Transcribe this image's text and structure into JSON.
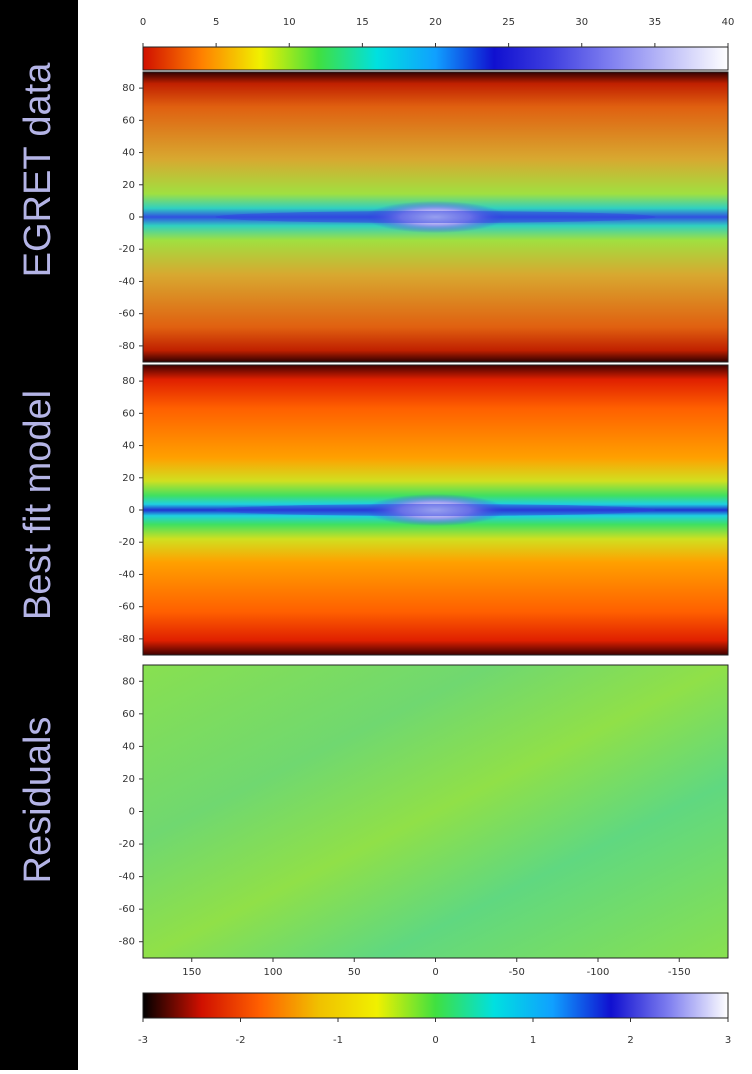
{
  "chart_data": [
    {
      "type": "colorbar",
      "xlim": [
        0,
        40
      ],
      "xticks": [
        0,
        5,
        10,
        15,
        20,
        25,
        30,
        35,
        40
      ],
      "colors": [
        "#d01000",
        "#ff8000",
        "#f0f000",
        "#40e040",
        "#00e0e0",
        "#10a0ff",
        "#1010d0",
        "#4040e0",
        "#8080f0",
        "#c0c0f8",
        "#ffffff"
      ]
    },
    {
      "type": "heatmap",
      "title": "EGRET data",
      "xlim": [
        180,
        -180
      ],
      "ylim": [
        -90,
        90
      ],
      "yticks": [
        80,
        60,
        40,
        20,
        0,
        -20,
        -40,
        -60,
        -80
      ]
    },
    {
      "type": "heatmap",
      "title": "Best fit model",
      "xlim": [
        180,
        -180
      ],
      "ylim": [
        -90,
        90
      ],
      "yticks": [
        80,
        60,
        40,
        20,
        0,
        -20,
        -40,
        -60,
        -80
      ]
    },
    {
      "type": "heatmap",
      "title": "Residuals",
      "xlim": [
        180,
        -180
      ],
      "ylim": [
        -90,
        90
      ],
      "yticks": [
        80,
        60,
        40,
        20,
        0,
        -20,
        -40,
        -60,
        -80
      ],
      "xticks": [
        150,
        100,
        50,
        0,
        -50,
        -100,
        -150
      ]
    },
    {
      "type": "colorbar",
      "xlim": [
        -3,
        3
      ],
      "xticks": [
        -3,
        -2,
        -1,
        0,
        1,
        2,
        3
      ],
      "colors": [
        "#000000",
        "#d01000",
        "#ff6000",
        "#f0c000",
        "#f0f000",
        "#40e040",
        "#00e0e0",
        "#10a0ff",
        "#1010d0",
        "#8080f0",
        "#ffffff"
      ]
    }
  ]
}
